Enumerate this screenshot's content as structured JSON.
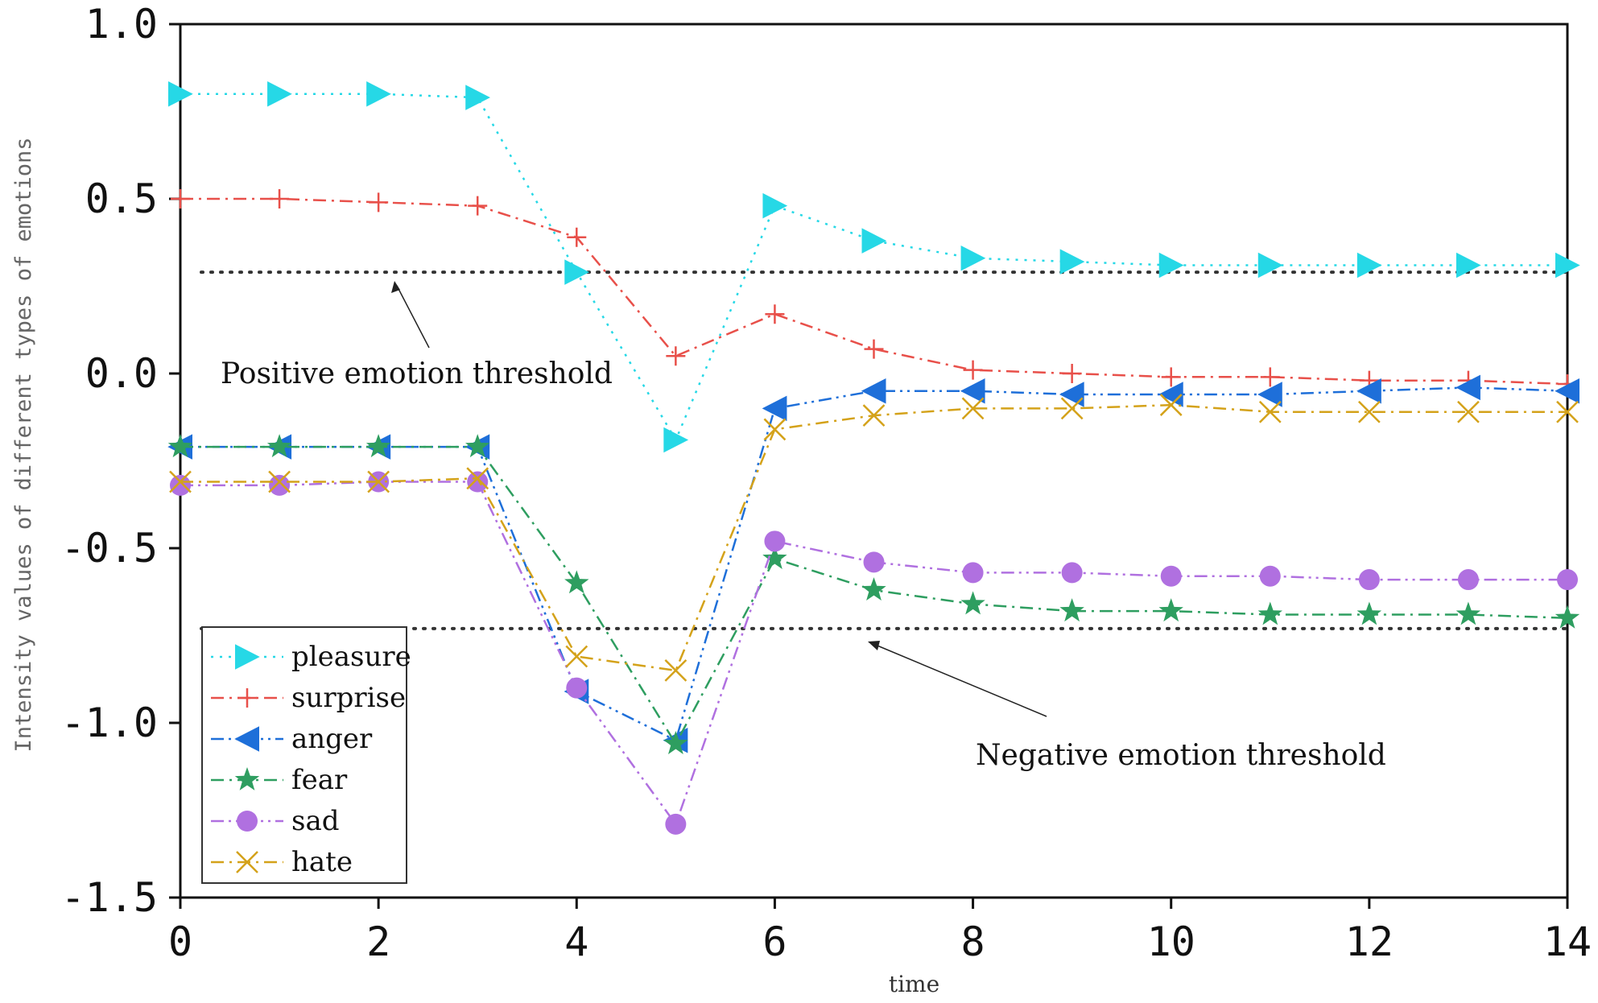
{
  "chart_data": {
    "type": "line",
    "title": "",
    "xlabel": "time",
    "ylabel": "Intensity values of different types of emotions",
    "xlim": [
      0,
      14
    ],
    "ylim": [
      -1.5,
      1.0
    ],
    "xticks": [
      0,
      2,
      4,
      6,
      8,
      10,
      12,
      14
    ],
    "xtick_labels": [
      "0",
      "2",
      "4",
      "6",
      "8",
      "10",
      "12",
      "14"
    ],
    "yticks": [
      1.0,
      0.5,
      0.0,
      -0.5,
      -1.0,
      -1.5
    ],
    "ytick_labels": [
      "1.0",
      "0.5",
      "0.0",
      "-0.5",
      "-1.0",
      "-1.5"
    ],
    "grid": false,
    "legend_position": "bottom-left",
    "x": [
      0,
      1,
      2,
      3,
      4,
      5,
      6,
      7,
      8,
      9,
      10,
      11,
      12,
      13,
      14
    ],
    "series": [
      {
        "name": "pleasure",
        "color": "#26d8e6",
        "marker": "triangle-right",
        "dash": "dotted",
        "values": [
          0.8,
          0.8,
          0.8,
          0.79,
          0.29,
          -0.19,
          0.48,
          0.38,
          0.33,
          0.32,
          0.31,
          0.31,
          0.31,
          0.31,
          0.31
        ]
      },
      {
        "name": "surprise",
        "color": "#e8504a",
        "marker": "plus",
        "dash": "dashdot",
        "values": [
          0.5,
          0.5,
          0.49,
          0.48,
          0.39,
          0.05,
          0.17,
          0.07,
          0.01,
          0.0,
          -0.01,
          -0.01,
          -0.02,
          -0.02,
          -0.03
        ]
      },
      {
        "name": "anger",
        "color": "#1e6fd9",
        "marker": "triangle-left",
        "dash": "dashdotdot",
        "values": [
          -0.21,
          -0.21,
          -0.21,
          -0.21,
          -0.91,
          -1.05,
          -0.1,
          -0.05,
          -0.05,
          -0.06,
          -0.06,
          -0.06,
          -0.05,
          -0.04,
          -0.05
        ]
      },
      {
        "name": "fear",
        "color": "#2e9e60",
        "marker": "star",
        "dash": "dashdot",
        "values": [
          -0.21,
          -0.21,
          -0.21,
          -0.21,
          -0.6,
          -1.06,
          -0.53,
          -0.62,
          -0.66,
          -0.68,
          -0.68,
          -0.69,
          -0.69,
          -0.69,
          -0.7
        ]
      },
      {
        "name": "sad",
        "color": "#b070e0",
        "marker": "circle",
        "dash": "dashdotdot",
        "values": [
          -0.32,
          -0.32,
          -0.31,
          -0.31,
          -0.9,
          -1.29,
          -0.48,
          -0.54,
          -0.57,
          -0.57,
          -0.58,
          -0.58,
          -0.59,
          -0.59,
          -0.59
        ]
      },
      {
        "name": "hate",
        "color": "#d4a21a",
        "marker": "x",
        "dash": "dashdot",
        "values": [
          -0.31,
          -0.31,
          -0.31,
          -0.3,
          -0.81,
          -0.85,
          -0.16,
          -0.12,
          -0.1,
          -0.1,
          -0.09,
          -0.11,
          -0.11,
          -0.11,
          -0.11
        ]
      }
    ],
    "thresholds": [
      {
        "name": "positive",
        "value": 0.29
      },
      {
        "name": "negative",
        "value": -0.73
      }
    ],
    "annotations": [
      {
        "text": "Positive emotion threshold",
        "points_to": {
          "x": 2.1,
          "y": 0.29
        }
      },
      {
        "text": "Negative emotion threshold",
        "points_to": {
          "x": 7.0,
          "y": -0.76
        }
      }
    ]
  }
}
